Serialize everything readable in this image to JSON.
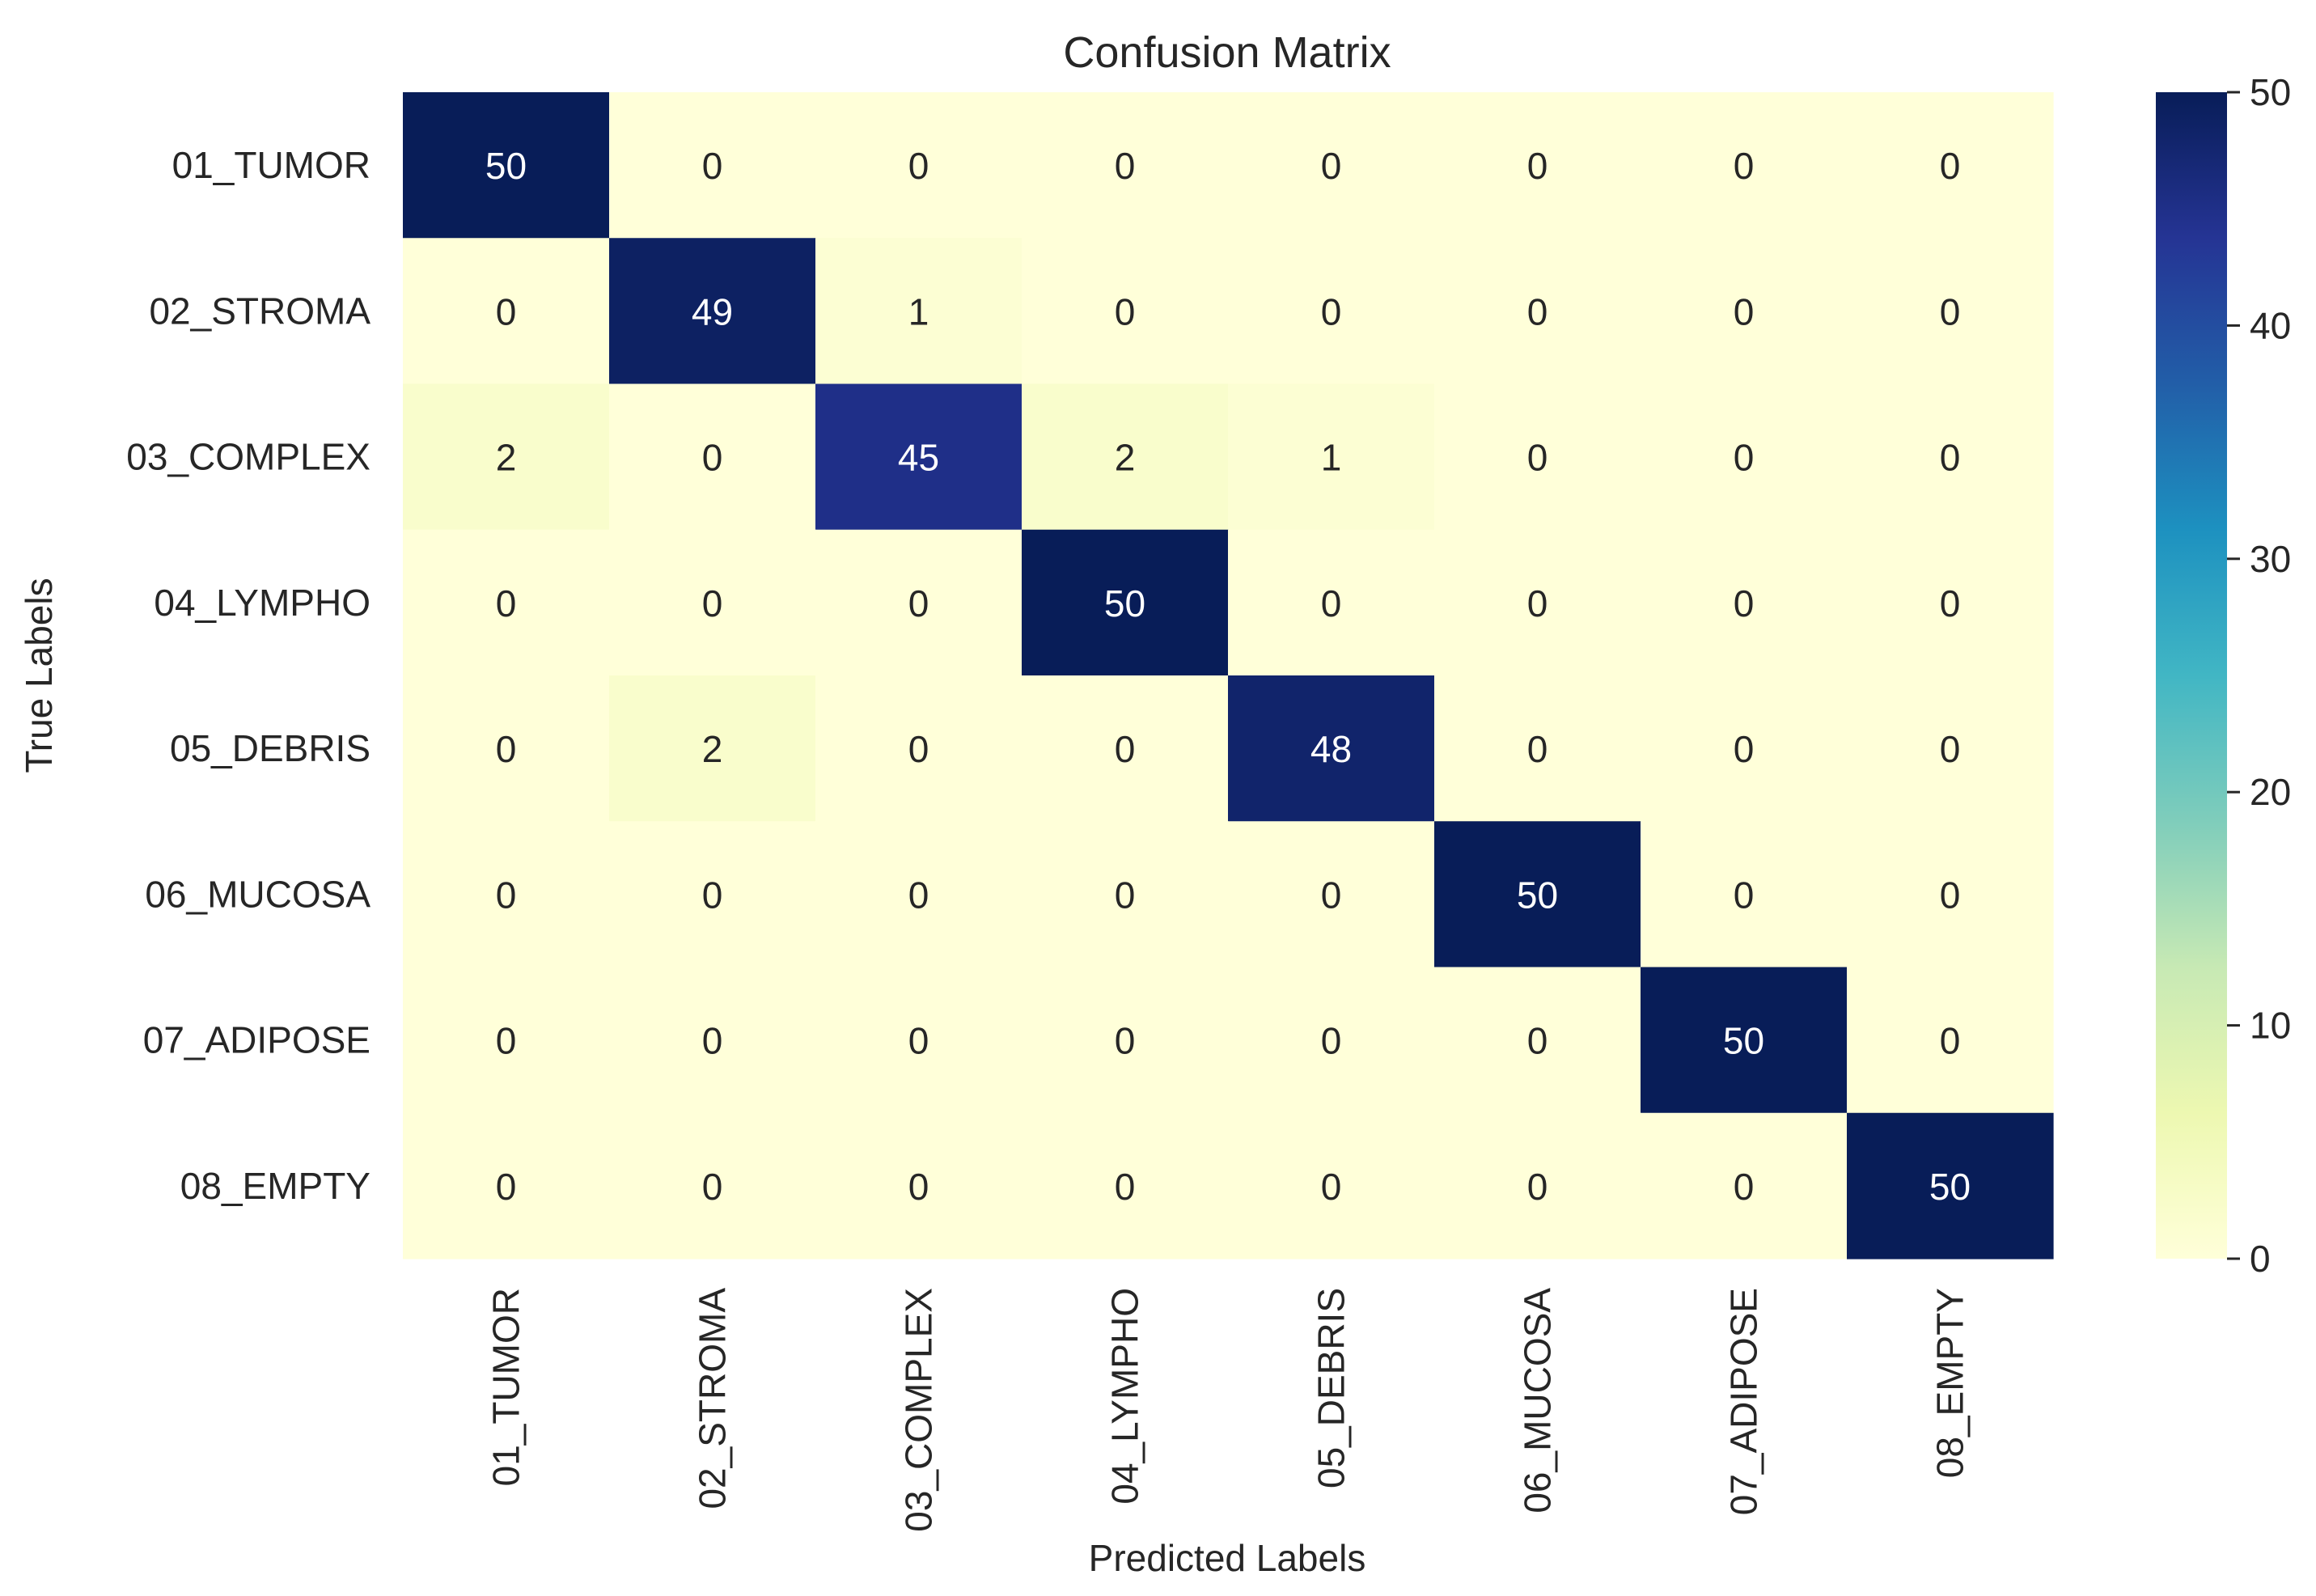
{
  "chart_data": {
    "type": "heatmap",
    "title": "Confusion Matrix",
    "xlabel": "Predicted Labels",
    "ylabel": "True Labels",
    "x_categories": [
      "01_TUMOR",
      "02_STROMA",
      "03_COMPLEX",
      "04_LYMPHO",
      "05_DEBRIS",
      "06_MUCOSA",
      "07_ADIPOSE",
      "08_EMPTY"
    ],
    "y_categories": [
      "01_TUMOR",
      "02_STROMA",
      "03_COMPLEX",
      "04_LYMPHO",
      "05_DEBRIS",
      "06_MUCOSA",
      "07_ADIPOSE",
      "08_EMPTY"
    ],
    "values": [
      [
        50,
        0,
        0,
        0,
        0,
        0,
        0,
        0
      ],
      [
        0,
        49,
        1,
        0,
        0,
        0,
        0,
        0
      ],
      [
        2,
        0,
        45,
        2,
        1,
        0,
        0,
        0
      ],
      [
        0,
        0,
        0,
        50,
        0,
        0,
        0,
        0
      ],
      [
        0,
        2,
        0,
        0,
        48,
        0,
        0,
        0
      ],
      [
        0,
        0,
        0,
        0,
        0,
        50,
        0,
        0
      ],
      [
        0,
        0,
        0,
        0,
        0,
        0,
        50,
        0
      ],
      [
        0,
        0,
        0,
        0,
        0,
        0,
        0,
        50
      ]
    ],
    "colorbar": {
      "min": 0,
      "max": 50,
      "ticks": [
        0,
        10,
        20,
        30,
        40,
        50
      ],
      "colormap": "YlGnBu",
      "stops": [
        "#ffffd9",
        "#edf8b1",
        "#c7e9b4",
        "#7fcdbb",
        "#41b6c4",
        "#1d91c0",
        "#225ea8",
        "#253494",
        "#081d58"
      ]
    },
    "annotation_colors": {
      "dark_cell_text": "#ffffff",
      "light_cell_text": "#262626"
    },
    "grid": false,
    "legend": "colorbar right"
  }
}
